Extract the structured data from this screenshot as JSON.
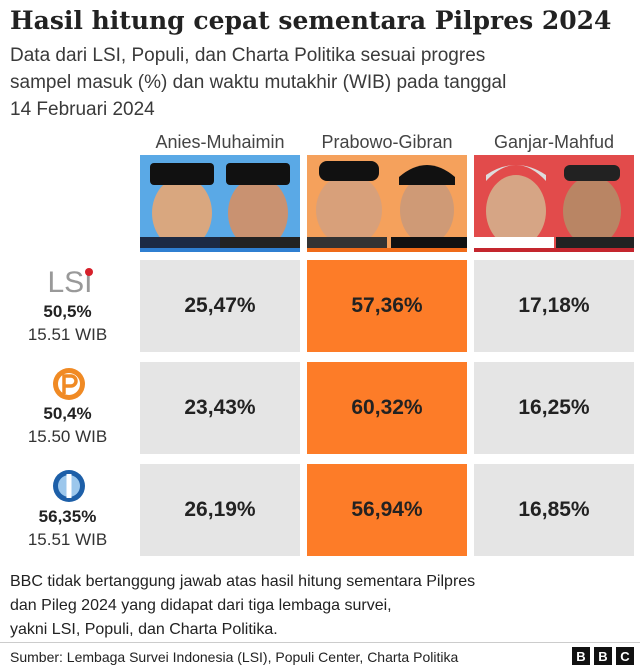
{
  "header": {
    "title": "Hasil hitung cepat sementara Pilpres 2024",
    "subtitle_lines": [
      "Data dari LSI, Populi, dan Charta Politika sesuai progres",
      "sampel masuk (%) dan waktu mutakhir (WIB) pada tanggal",
      "14 Februari 2024"
    ]
  },
  "table": {
    "columns": [
      "Anies-Muhaimin",
      "Prabowo-Gibran",
      "Ganjar-Mahfud"
    ],
    "rows": [
      {
        "logo": "LSI",
        "sample": "50,5%",
        "time": "15.51 WIB",
        "values": [
          "25,47%",
          "57,36%",
          "17,18%"
        ]
      },
      {
        "sample": "50,4%",
        "time": "15.50 WIB",
        "values": [
          "23,43%",
          "60,32%",
          "16,25%"
        ]
      },
      {
        "sample": "56,35%",
        "time": "15.51 WIB",
        "values": [
          "26,19%",
          "56,94%",
          "16,85%"
        ]
      }
    ]
  },
  "footnote_lines": [
    "BBC tidak bertanggung jawab atas hasil hitung sementara Pilpres",
    "dan Pileg 2024 yang didapat dari tiga lembaga survei,",
    "yakni LSI, Populi, dan Charta Politika."
  ],
  "source": "Sumber: Lembaga Survei Indonesia (LSI), Populi Center, Charta Politika",
  "brand": [
    "B",
    "B",
    "C"
  ]
}
